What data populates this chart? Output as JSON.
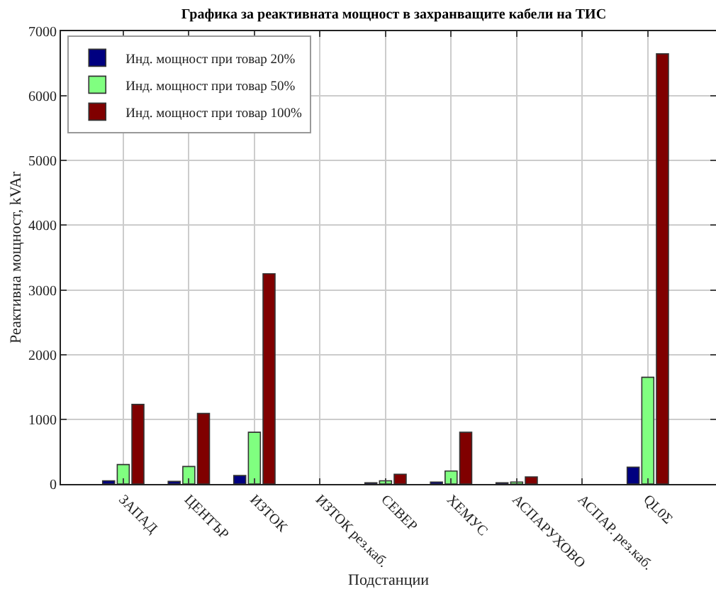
{
  "chart_data": {
    "type": "bar",
    "title": "Графика за реактивната мощност в захранващите кабели на ТИС",
    "xlabel": "Подстанции",
    "ylabel": "Реактивна мощност, kVAr",
    "categories": [
      "ЗАПАД",
      "ЦЕНТЪР",
      "ИЗТОК",
      "ИЗТОК рез.каб.",
      "СЕВЕР",
      "ХЕМУС",
      "АСПАРУХОВО",
      "АСПАР. рез.каб.",
      "QL0Σ"
    ],
    "series": [
      {
        "name": "Инд. мощност при товар 20%",
        "color": "#000080",
        "values": [
          50,
          40,
          130,
          null,
          20,
          30,
          20,
          null,
          260
        ]
      },
      {
        "name": "Инд. мощност при товар 50%",
        "color": "#80ff80",
        "values": [
          300,
          270,
          800,
          null,
          50,
          200,
          30,
          null,
          1650
        ]
      },
      {
        "name": "Инд. мощност при товар 100%",
        "color": "#800000",
        "values": [
          1230,
          1090,
          3250,
          null,
          150,
          800,
          110,
          null,
          6650
        ]
      }
    ],
    "ylim": [
      0,
      7000
    ],
    "yticks": [
      0,
      1000,
      2000,
      3000,
      4000,
      5000,
      6000,
      7000
    ],
    "grid": true,
    "legend": "top left"
  }
}
